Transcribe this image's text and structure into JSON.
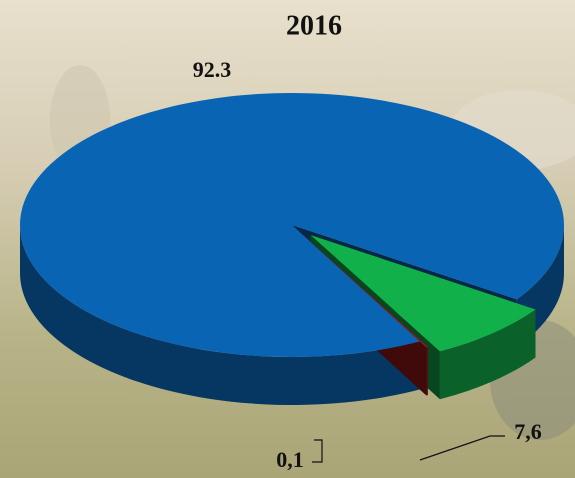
{
  "chart_data": {
    "type": "pie",
    "title": "2016",
    "values": [
      92.3,
      7.6,
      0.1
    ],
    "value_labels": [
      "92.3",
      "7,6",
      "0,1"
    ],
    "colors": [
      "#0a64b4",
      "#12b04a",
      "#a01818"
    ]
  }
}
